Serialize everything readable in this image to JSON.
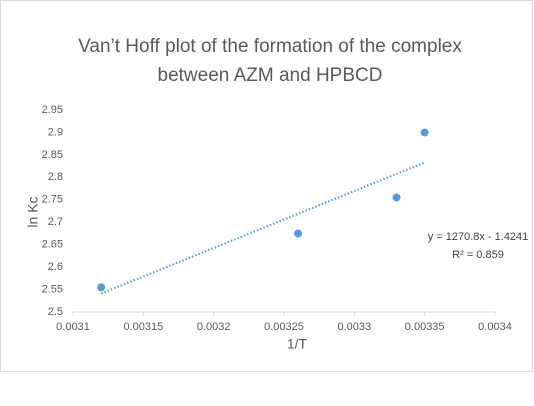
{
  "chart_data": {
    "type": "scatter",
    "title": [
      "Van’t Hoff plot of the formation of the complex",
      "between AZM and HPBCD"
    ],
    "x_label": "1/T",
    "y_label": "ln Kc",
    "x": [
      0.00312,
      0.00326,
      0.00333,
      0.00335
    ],
    "values": [
      2.555,
      2.675,
      2.755,
      2.9
    ],
    "color": "#5b9bd5",
    "trendline": {
      "x": [
        0.00312,
        0.00335
      ],
      "values": [
        2.541,
        2.833
      ],
      "color": "#5b9bd5"
    },
    "annotations": [
      "y = 1270.8x - 1.4241",
      "R² = 0.859"
    ],
    "xlim": [
      0.0031,
      0.0034
    ],
    "xticks": [
      0.0031,
      0.00315,
      0.0032,
      0.00325,
      0.0033,
      0.00335,
      0.0034
    ],
    "ylim": [
      2.5,
      2.95
    ],
    "yticks": [
      2.5,
      2.55,
      2.6,
      2.65,
      2.7,
      2.75,
      2.8,
      2.85,
      2.9,
      2.95
    ],
    "grid": false
  }
}
